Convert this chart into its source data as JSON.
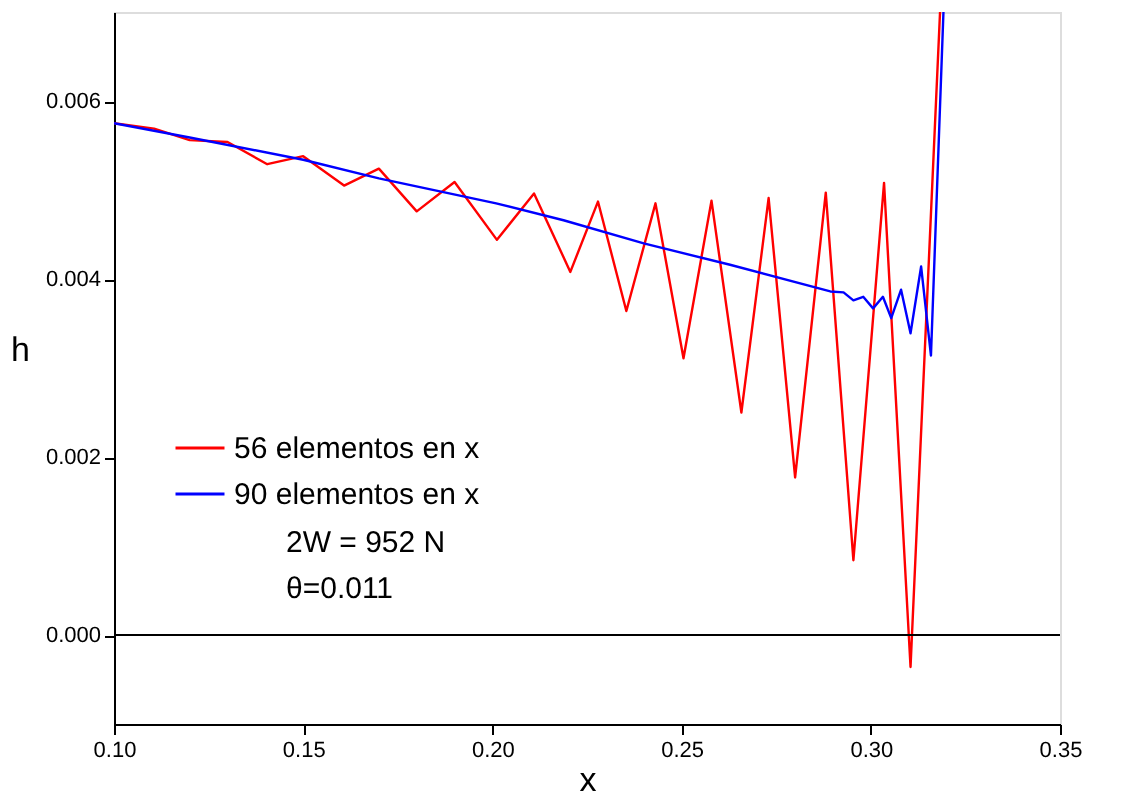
{
  "chart_data": {
    "type": "line",
    "xlabel": "x",
    "ylabel": "h",
    "xlim": [
      0.1,
      0.35
    ],
    "xticks": [
      {
        "value": 0.1,
        "label": "0.10"
      },
      0.15,
      {
        "value": 0.2,
        "label": "0.20"
      },
      0.25,
      {
        "value": 0.3,
        "label": "0.30"
      },
      0.35
    ],
    "ylim": [
      -0.001,
      0.007
    ],
    "yticks": [
      {
        "value": 0,
        "label": "0.000"
      },
      {
        "value": 0.002,
        "label": "0.002"
      },
      {
        "value": 0.004,
        "label": "0.004"
      },
      {
        "value": 0.006,
        "label": "0.006"
      }
    ],
    "series": [
      {
        "name": "56 elementos en x",
        "color": "#ff0000",
        "x": [
          0.1,
          0.1106,
          0.12,
          0.13,
          0.1405,
          0.15,
          0.1608,
          0.17,
          0.18,
          0.19,
          0.2012,
          0.211,
          0.2206,
          0.2279,
          0.2354,
          0.2431,
          0.2505,
          0.2579,
          0.2658,
          0.273,
          0.28,
          0.2881,
          0.2954,
          0.3035,
          0.3105,
          0.3183
        ],
        "values": [
          0.00575,
          0.00569,
          0.00556,
          0.00554,
          0.00529,
          0.00538,
          0.00505,
          0.00524,
          0.00476,
          0.00509,
          0.00444,
          0.00496,
          0.00408,
          0.00487,
          0.00364,
          0.00485,
          0.00311,
          0.00488,
          0.0025,
          0.00491,
          0.00177,
          0.00497,
          0.00084,
          0.00508,
          -0.00036,
          0.007
        ]
      },
      {
        "name": "90 elementos en x",
        "color": "#0000ff",
        "x": [
          0.1,
          0.12,
          0.15,
          0.17,
          0.201,
          0.2188,
          0.24,
          0.2628,
          0.2893,
          0.2928,
          0.2954,
          0.298,
          0.3006,
          0.3032,
          0.3054,
          0.308,
          0.3105,
          0.3133,
          0.3159,
          0.3192
        ],
        "values": [
          0.00575,
          0.00559,
          0.00534,
          0.00513,
          0.00485,
          0.00466,
          0.0044,
          0.00416,
          0.00386,
          0.00385,
          0.00376,
          0.0038,
          0.00367,
          0.0038,
          0.00356,
          0.00388,
          0.00339,
          0.00414,
          0.00314,
          0.007
        ]
      }
    ],
    "ref_lines": [
      {
        "axis": "y",
        "value": 0,
        "color": "#000000"
      }
    ],
    "annotations": [
      "2W = 952 N",
      "θ=0.011"
    ],
    "legend": "left",
    "grid": false,
    "marker": "none",
    "line_style": "solid"
  }
}
